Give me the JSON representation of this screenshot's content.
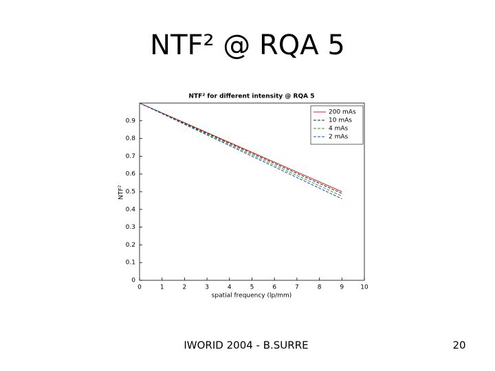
{
  "slide_title": "NTF² @ RQA 5",
  "footer": "IWORID 2004 - B.SURRE",
  "page_number": "20",
  "chart_data": {
    "type": "line",
    "title": "NTF² for different intensity @ RQA 5",
    "x_label": "spatial frequency (lp/mm)",
    "y_label": "NTF²",
    "x": [
      0,
      9
    ],
    "series": [
      {
        "name": "200 mAs",
        "color": "#d62020",
        "dashed": false,
        "values": [
          1,
          0.5
        ]
      },
      {
        "name": "10 mAs",
        "color": "#222222",
        "dashed": true,
        "values": [
          1,
          0.49
        ]
      },
      {
        "name": "4 mAs",
        "color": "#2a9a2a",
        "dashed": true,
        "values": [
          1,
          0.475
        ]
      },
      {
        "name": "2 mAs",
        "color": "#2040c0",
        "dashed": true,
        "values": [
          1,
          0.46
        ]
      }
    ],
    "xlim": [
      0,
      10
    ],
    "ylim": [
      0,
      1
    ],
    "xticks": [
      0,
      1,
      2,
      3,
      4,
      5,
      6,
      7,
      8,
      9,
      10
    ],
    "yticks": [
      0,
      0.1,
      0.2,
      0.3,
      0.4,
      0.5,
      0.6,
      0.7,
      0.8,
      0.9
    ],
    "legend": "upper right"
  }
}
